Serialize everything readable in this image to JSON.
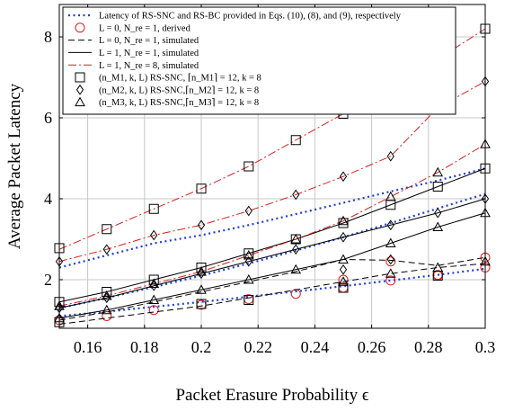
{
  "chart_data": {
    "type": "line",
    "xlabel": "Packet Erasure Probability ϵ",
    "ylabel": "Average Packet Latency",
    "xlim": [
      0.15,
      0.3
    ],
    "ylim": [
      0.8,
      8.8
    ],
    "xticks": [
      0.16,
      0.18,
      0.2,
      0.22,
      0.24,
      0.26,
      0.28,
      0.3
    ],
    "xtick_labels": [
      "0.16",
      "0.18",
      "0.2",
      "0.22",
      "0.24",
      "0.26",
      "0.28",
      "0.3"
    ],
    "yticks": [
      2,
      4,
      6,
      8
    ],
    "ytick_labels": [
      "2",
      "4",
      "6",
      "8"
    ],
    "grid": true,
    "legend_position": "top-left",
    "x": [
      0.15,
      0.1667,
      0.1833,
      0.2,
      0.2167,
      0.2333,
      0.25,
      0.2667,
      0.2833,
      0.3
    ],
    "series": [
      {
        "name": "Latency of RS-SNC and RS-BC provided in Eqs. (10), (8), and (9), respectively",
        "style": "dotted",
        "color": "#1f3fd6",
        "marker": "none",
        "curves": [
          [
            1.1,
            1.21,
            1.33,
            1.45,
            1.58,
            1.71,
            1.84,
            1.98,
            2.12,
            2.27
          ],
          [
            1.3,
            1.55,
            1.82,
            2.1,
            2.4,
            2.72,
            3.05,
            3.4,
            3.76,
            4.12
          ],
          [
            2.3,
            2.6,
            2.9,
            3.1,
            3.35,
            3.62,
            3.9,
            4.18,
            4.45,
            4.75
          ]
        ]
      },
      {
        "name": "L = 0, N_re = 1, derived",
        "style": "none",
        "color": "#e02020",
        "marker": "circle",
        "values": [
          1.0,
          1.1,
          1.25,
          1.38,
          1.52,
          1.65,
          1.8,
          1.98,
          2.12,
          2.3
        ],
        "extra_points": [
          [
            0.25,
            2.0
          ],
          [
            0.2667,
            2.45
          ],
          [
            0.2833,
            2.1
          ],
          [
            0.3,
            2.55
          ]
        ]
      },
      {
        "name": "L = 0, N_re = 1, simulated",
        "style": "dashed",
        "color": "#000000",
        "marker": "none",
        "curves": [
          [
            0.9,
            1.05,
            1.2,
            1.35,
            1.55,
            1.75,
            1.95,
            2.15,
            2.3,
            2.4
          ],
          [
            1.0,
            1.2,
            1.45,
            1.7,
            1.95,
            2.2,
            2.5,
            2.48,
            2.35,
            2.55
          ]
        ]
      },
      {
        "name": "L = 1, N_re = 1, simulated",
        "style": "solid",
        "color": "#000000",
        "marker": "none",
        "curves": [
          [
            1.05,
            1.25,
            1.5,
            1.75,
            2.0,
            2.25,
            2.5,
            2.9,
            3.3,
            3.65
          ],
          [
            1.3,
            1.55,
            1.85,
            2.15,
            2.45,
            2.75,
            3.05,
            3.35,
            3.65,
            4.0
          ],
          [
            1.45,
            1.7,
            2.0,
            2.3,
            2.65,
            3.0,
            3.4,
            3.85,
            4.3,
            4.75
          ]
        ]
      },
      {
        "name": "L = 1, N_re = 8, simulated",
        "style": "dashdot",
        "color": "#d42020",
        "marker": "none",
        "curves": [
          [
            1.35,
            1.6,
            1.9,
            2.2,
            2.6,
            3.0,
            3.45,
            4.05,
            4.65,
            5.35
          ],
          [
            2.45,
            2.75,
            3.1,
            3.35,
            3.7,
            4.1,
            4.55,
            5.05,
            6.25,
            6.9
          ],
          [
            2.75,
            3.25,
            3.75,
            4.25,
            4.8,
            5.45,
            6.1,
            6.75,
            7.45,
            8.2
          ]
        ]
      },
      {
        "name": "(n_M1, k, L) RS-SNC, ⌈n_M1⌉ = 12, k = 8",
        "style": "none",
        "color": "#000000",
        "marker": "square",
        "values": [
          2.78,
          1.7,
          2.0,
          2.3,
          2.65,
          3.0,
          3.4,
          3.85,
          4.3,
          4.75
        ],
        "extra_points": [
          [
            0.15,
            1.45
          ],
          [
            0.1667,
            3.25
          ],
          [
            0.1833,
            3.75
          ],
          [
            0.2,
            4.25
          ],
          [
            0.2167,
            4.8
          ],
          [
            0.2333,
            5.45
          ],
          [
            0.25,
            6.1
          ],
          [
            0.3,
            8.2
          ],
          [
            0.15,
            0.95
          ],
          [
            0.2,
            1.4
          ],
          [
            0.2167,
            1.5
          ],
          [
            0.25,
            1.8
          ],
          [
            0.2833,
            2.1
          ]
        ]
      },
      {
        "name": "(n_M2, k, L) RS-SNC,⌈n_M2⌉ = 12, k = 8",
        "style": "none",
        "color": "#000000",
        "marker": "diamond",
        "values": [
          2.45,
          2.75,
          3.1,
          3.35,
          3.7,
          4.1,
          4.55,
          5.05,
          6.25,
          6.9
        ],
        "extra_points": [
          [
            0.15,
            1.3
          ],
          [
            0.1667,
            1.55
          ],
          [
            0.1833,
            1.85
          ],
          [
            0.2,
            2.15
          ],
          [
            0.2167,
            2.45
          ],
          [
            0.2333,
            2.75
          ],
          [
            0.25,
            3.05
          ],
          [
            0.2667,
            3.35
          ],
          [
            0.2833,
            3.65
          ],
          [
            0.3,
            4.0
          ],
          [
            0.25,
            2.25
          ],
          [
            0.2667,
            2.5
          ]
        ]
      },
      {
        "name": "(n_M3, k, L) RS-SNC,⌈n_M3⌉ = 12, k = 8",
        "style": "none",
        "color": "#000000",
        "marker": "triangle",
        "values": [
          1.35,
          1.6,
          1.9,
          2.2,
          2.6,
          3.0,
          3.45,
          4.05,
          4.65,
          5.35
        ],
        "extra_points": [
          [
            0.15,
            1.05
          ],
          [
            0.1667,
            1.25
          ],
          [
            0.1833,
            1.5
          ],
          [
            0.2,
            1.75
          ],
          [
            0.2167,
            2.0
          ],
          [
            0.2333,
            2.25
          ],
          [
            0.25,
            2.5
          ],
          [
            0.2667,
            2.9
          ],
          [
            0.2833,
            3.3
          ],
          [
            0.3,
            3.65
          ],
          [
            0.25,
            1.95
          ],
          [
            0.2667,
            2.15
          ],
          [
            0.2833,
            2.3
          ],
          [
            0.3,
            2.45
          ]
        ]
      }
    ]
  }
}
